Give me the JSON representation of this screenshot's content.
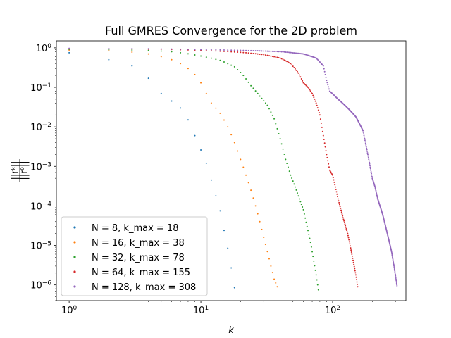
{
  "chart_data": {
    "type": "scatter",
    "title": "Full GMRES Convergence for the 2D problem",
    "xlabel": "k",
    "ylabel": "||r^k|| / ||r^0||",
    "xscale": "log",
    "yscale": "log",
    "xlim": [
      0.8,
      360
    ],
    "ylim": [
      4e-07,
      1.5
    ],
    "xticks": [
      {
        "value": 1,
        "label": "10",
        "exp": "0"
      },
      {
        "value": 10,
        "label": "10",
        "exp": "1"
      },
      {
        "value": 100,
        "label": "10",
        "exp": "2"
      }
    ],
    "yticks": [
      {
        "value": 1,
        "label": "10",
        "exp": "0"
      },
      {
        "value": 0.1,
        "label": "10",
        "exp": "−1"
      },
      {
        "value": 0.01,
        "label": "10",
        "exp": "−2"
      },
      {
        "value": 0.001,
        "label": "10",
        "exp": "−3"
      },
      {
        "value": 0.0001,
        "label": "10",
        "exp": "−4"
      },
      {
        "value": 1e-05,
        "label": "10",
        "exp": "−5"
      },
      {
        "value": 1e-06,
        "label": "10",
        "exp": "−6"
      }
    ],
    "grid": false,
    "legend_position": "lower-left",
    "series": [
      {
        "name": "N = 8, k_max = 18",
        "color": "#1f77b4",
        "keypoints": [
          [
            1,
            0.75
          ],
          [
            2,
            0.5
          ],
          [
            3,
            0.35
          ],
          [
            4,
            0.17
          ],
          [
            5,
            0.07
          ],
          [
            6,
            0.045
          ],
          [
            7,
            0.03
          ],
          [
            8,
            0.015
          ],
          [
            9,
            0.006
          ],
          [
            10,
            0.0026
          ],
          [
            11,
            0.0012
          ],
          [
            12,
            0.00045
          ],
          [
            13,
            0.00018
          ],
          [
            14,
            7.5e-05
          ],
          [
            15,
            2.4e-05
          ],
          [
            16,
            8.5e-06
          ],
          [
            17,
            2.7e-06
          ],
          [
            18,
            8.5e-07
          ]
        ]
      },
      {
        "name": "N = 16, k_max = 38",
        "color": "#ff7f0e",
        "keypoints": [
          [
            1,
            0.88
          ],
          [
            2,
            0.85
          ],
          [
            3,
            0.78
          ],
          [
            4,
            0.7
          ],
          [
            5,
            0.6
          ],
          [
            6,
            0.5
          ],
          [
            7,
            0.4
          ],
          [
            8,
            0.3
          ],
          [
            9,
            0.21
          ],
          [
            10,
            0.13
          ],
          [
            11,
            0.07
          ],
          [
            12,
            0.04
          ],
          [
            14,
            0.022
          ],
          [
            16,
            0.01
          ],
          [
            18,
            0.004
          ],
          [
            20,
            0.0015
          ],
          [
            22,
            0.0006
          ],
          [
            24,
            0.00025
          ],
          [
            26,
            0.0001
          ],
          [
            28,
            4e-05
          ],
          [
            30,
            1.6e-05
          ],
          [
            32,
            7e-06
          ],
          [
            34,
            3e-06
          ],
          [
            36,
            1.4e-06
          ],
          [
            38,
            9e-07
          ]
        ]
      },
      {
        "name": "N = 32, k_max = 78",
        "color": "#2ca02c",
        "keypoints": [
          [
            1,
            0.92
          ],
          [
            3,
            0.88
          ],
          [
            6,
            0.8
          ],
          [
            10,
            0.62
          ],
          [
            14,
            0.48
          ],
          [
            18,
            0.33
          ],
          [
            21,
            0.2
          ],
          [
            24,
            0.11
          ],
          [
            28,
            0.06
          ],
          [
            32,
            0.035
          ],
          [
            36,
            0.016
          ],
          [
            40,
            0.005
          ],
          [
            44,
            0.0015
          ],
          [
            48,
            0.0006
          ],
          [
            52,
            0.0003
          ],
          [
            56,
            0.00015
          ],
          [
            60,
            8e-05
          ],
          [
            64,
            3e-05
          ],
          [
            68,
            1.2e-05
          ],
          [
            72,
            4e-06
          ],
          [
            75,
            1.8e-06
          ],
          [
            78,
            7.5e-07
          ]
        ]
      },
      {
        "name": "N = 64, k_max = 155",
        "color": "#d62728",
        "keypoints": [
          [
            1,
            0.95
          ],
          [
            5,
            0.92
          ],
          [
            10,
            0.86
          ],
          [
            20,
            0.77
          ],
          [
            30,
            0.67
          ],
          [
            40,
            0.55
          ],
          [
            48,
            0.4
          ],
          [
            55,
            0.23
          ],
          [
            60,
            0.13
          ],
          [
            65,
            0.1
          ],
          [
            70,
            0.07
          ],
          [
            75,
            0.04
          ],
          [
            80,
            0.02
          ],
          [
            85,
            0.006
          ],
          [
            90,
            0.002
          ],
          [
            95,
            0.0008
          ],
          [
            100,
            0.0006
          ],
          [
            105,
            0.0003
          ],
          [
            110,
            0.00015
          ],
          [
            120,
            5e-05
          ],
          [
            130,
            2e-05
          ],
          [
            140,
            6e-06
          ],
          [
            150,
            1.8e-06
          ],
          [
            155,
            9e-07
          ]
        ]
      },
      {
        "name": "N = 128, k_max = 308",
        "color": "#9467bd",
        "keypoints": [
          [
            1,
            0.97
          ],
          [
            10,
            0.9
          ],
          [
            20,
            0.86
          ],
          [
            40,
            0.8
          ],
          [
            60,
            0.7
          ],
          [
            75,
            0.55
          ],
          [
            85,
            0.35
          ],
          [
            90,
            0.15
          ],
          [
            95,
            0.08
          ],
          [
            110,
            0.05
          ],
          [
            130,
            0.03
          ],
          [
            150,
            0.018
          ],
          [
            170,
            0.008
          ],
          [
            185,
            0.002
          ],
          [
            200,
            0.0005
          ],
          [
            210,
            0.0003
          ],
          [
            220,
            0.00015
          ],
          [
            240,
            6e-05
          ],
          [
            260,
            2e-05
          ],
          [
            280,
            7e-06
          ],
          [
            295,
            2.5e-06
          ],
          [
            308,
            9.5e-07
          ]
        ]
      }
    ]
  }
}
